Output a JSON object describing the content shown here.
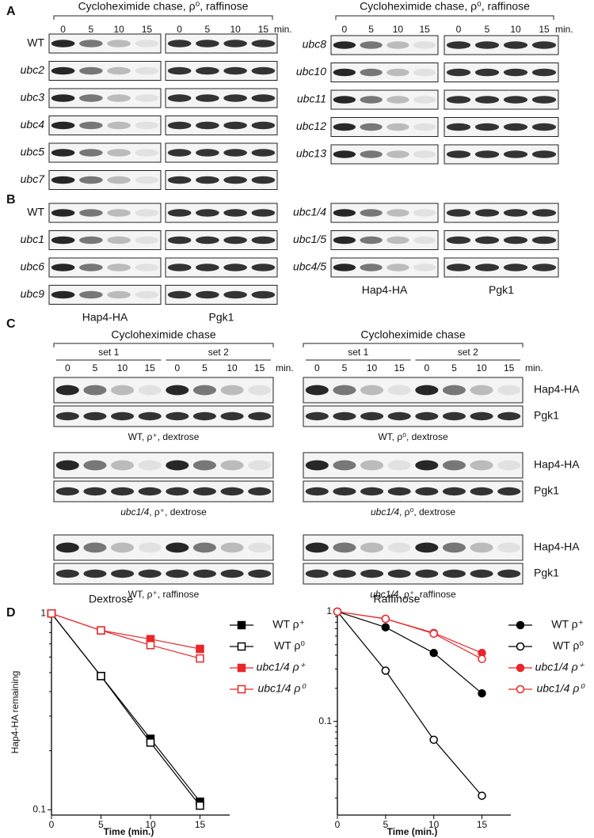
{
  "panel_a": {
    "letter": "A",
    "times": [
      "0",
      "5",
      "10",
      "15"
    ],
    "unit": "min.",
    "columns": [
      {
        "header": "Cycloheximide chase, ρ⁰, raffinose",
        "strains": [
          "WT",
          "ubc2",
          "ubc3",
          "ubc4",
          "ubc5",
          "ubc7"
        ]
      },
      {
        "header": "Cycloheximide chase, ρ⁰, raffinose",
        "strains": [
          "ubc8",
          "ubc10",
          "ubc11",
          "ubc12",
          "ubc13"
        ]
      }
    ]
  },
  "panel_b": {
    "letter": "B",
    "proteins": [
      "Hap4-HA",
      "Pgk1"
    ],
    "columns": [
      {
        "strains": [
          "WT",
          "ubc1",
          "ubc6",
          "ubc9"
        ]
      },
      {
        "strains": [
          "ubc1/4",
          "ubc1/5",
          "ubc4/5"
        ]
      }
    ]
  },
  "panel_c": {
    "letter": "C",
    "header": "Cycloheximide chase",
    "sets": [
      "set 1",
      "set 2"
    ],
    "times": [
      "0",
      "5",
      "10",
      "15"
    ],
    "unit": "min.",
    "proteins": [
      "Hap4-HA",
      "Pgk1"
    ],
    "columns": [
      {
        "blots": [
          {
            "strain": "WT",
            "conditions": ", ρ⁺, dextrose"
          },
          {
            "strain": "ubc1/4",
            "conditions": ", ρ⁺, dextrose"
          },
          {
            "strain": "WT",
            "conditions": ", ρ⁺, raffinose"
          }
        ]
      },
      {
        "blots": [
          {
            "strain": "WT",
            "conditions": ", ρ⁰, dextrose"
          },
          {
            "strain": "ubc1/4",
            "conditions": ", ρ⁰, dextrose"
          },
          {
            "strain": "ubc1/4",
            "conditions": ", ρ⁺, raffinose"
          }
        ]
      }
    ]
  },
  "panel_d": {
    "letter": "D"
  },
  "chart_data": [
    {
      "type": "line",
      "title": "Dextrose",
      "y_label": "Hap4-HA remaining",
      "x_label": "Time (min.)",
      "log_y": true,
      "x": [
        0,
        5,
        10,
        15
      ],
      "xlim": [
        0,
        18
      ],
      "xticks": [
        0,
        5,
        10,
        15
      ],
      "ylim": [
        0.094,
        1.05
      ],
      "yticks": [
        0.1,
        1
      ],
      "series": [
        {
          "name": "WT ρ⁺",
          "color": "#000000",
          "marker": "square",
          "filled": true,
          "values": [
            1,
            0.48,
            0.23,
            0.11
          ]
        },
        {
          "name": "WT ρ⁰",
          "color": "#000000",
          "marker": "square",
          "filled": false,
          "values": [
            1,
            0.48,
            0.22,
            0.105
          ]
        },
        {
          "name": "ubc1/4 ρ⁺",
          "color": "#e8262b",
          "marker": "square",
          "filled": true,
          "values": [
            1,
            0.82,
            0.74,
            0.66
          ]
        },
        {
          "name": "ubc1/4 ρ⁰",
          "color": "#e8262b",
          "marker": "square",
          "filled": false,
          "values": [
            1,
            0.82,
            0.69,
            0.59
          ]
        }
      ]
    },
    {
      "type": "line",
      "title": "Raffinose",
      "x_label": "Time (min.)",
      "log_y": true,
      "x": [
        0,
        5,
        10,
        15
      ],
      "xlim": [
        0,
        18
      ],
      "xticks": [
        0,
        5,
        10,
        15
      ],
      "ylim": [
        0.014,
        1.05
      ],
      "yticks": [
        0.1,
        1
      ],
      "series": [
        {
          "name": "WT ρ⁺",
          "color": "#000000",
          "marker": "circle",
          "filled": true,
          "values": [
            1,
            0.72,
            0.42,
            0.18
          ]
        },
        {
          "name": "WT ρ⁰",
          "color": "#000000",
          "marker": "circle",
          "filled": false,
          "values": [
            1,
            0.29,
            0.068,
            0.021
          ]
        },
        {
          "name": "ubc1/4 ρ⁺",
          "color": "#e8262b",
          "marker": "circle",
          "filled": true,
          "values": [
            1,
            0.86,
            0.64,
            0.42
          ]
        },
        {
          "name": "ubc1/4 ρ⁰",
          "color": "#e8262b",
          "marker": "circle",
          "filled": false,
          "values": [
            1,
            0.86,
            0.63,
            0.37
          ]
        }
      ]
    }
  ]
}
